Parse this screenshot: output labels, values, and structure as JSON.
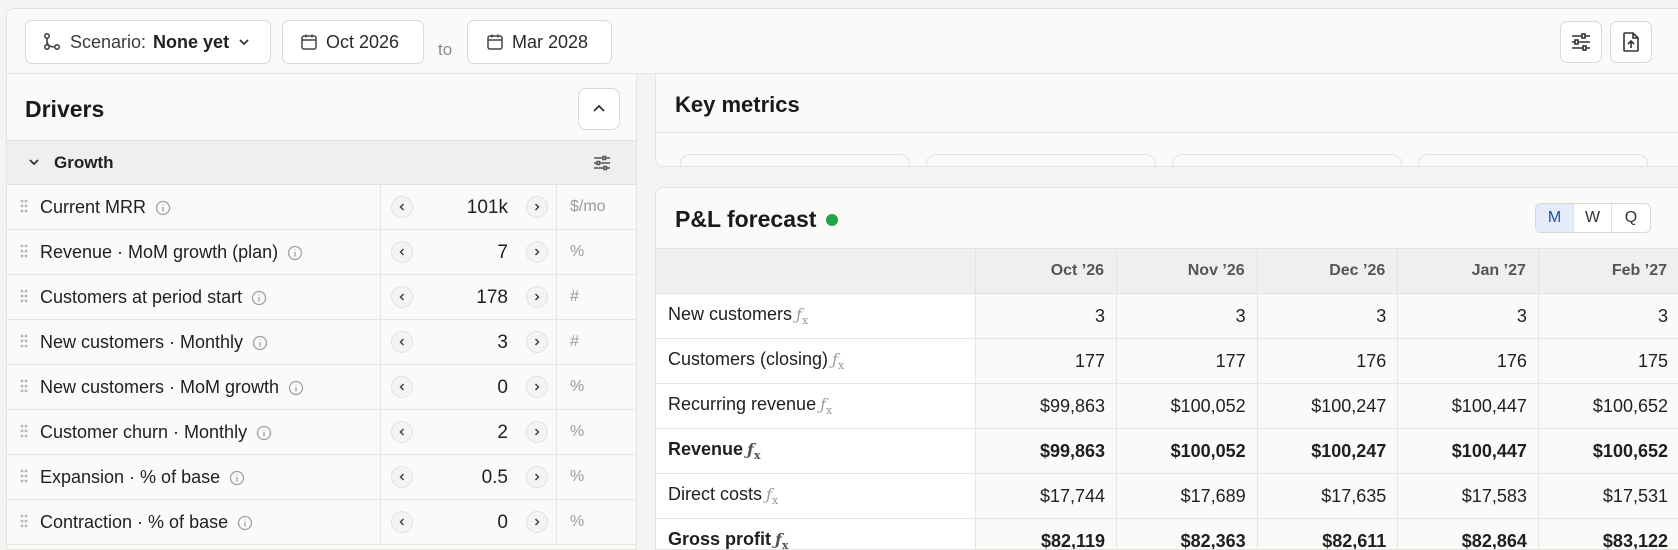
{
  "toolbar": {
    "scenario_label": "Scenario:",
    "scenario_value": "None yet",
    "start_date": "Oct 2026",
    "to_label": "to",
    "end_date": "Mar 2028"
  },
  "drivers": {
    "title": "Drivers",
    "group_title": "Growth",
    "rows": [
      {
        "label": "Current MRR",
        "value": "101k",
        "unit": "$/mo"
      },
      {
        "label": "Revenue · MoM growth (plan)",
        "value": "7",
        "unit": "%"
      },
      {
        "label": "Customers at period start",
        "value": "178",
        "unit": "#"
      },
      {
        "label": "New customers · Monthly",
        "value": "3",
        "unit": "#"
      },
      {
        "label": "New customers · MoM growth",
        "value": "0",
        "unit": "%"
      },
      {
        "label": "Customer churn · Monthly",
        "value": "2",
        "unit": "%"
      },
      {
        "label": "Expansion · % of base",
        "value": "0.5",
        "unit": "%"
      },
      {
        "label": "Contraction · % of base",
        "value": "0",
        "unit": "%"
      }
    ]
  },
  "key_metrics": {
    "title": "Key metrics"
  },
  "pl": {
    "title": "P&L forecast",
    "status_color": "#22a447",
    "period_toggle": [
      "M",
      "W",
      "Q"
    ],
    "active_period": "M",
    "columns": [
      "Oct ’26",
      "Nov ’26",
      "Dec ’26",
      "Jan ’27",
      "Feb ’27"
    ],
    "rows": [
      {
        "label": "New customers",
        "bold": false,
        "values": [
          "3",
          "3",
          "3",
          "3",
          "3"
        ]
      },
      {
        "label": "Customers (closing)",
        "bold": false,
        "values": [
          "177",
          "177",
          "176",
          "176",
          "175"
        ]
      },
      {
        "label": "Recurring revenue",
        "bold": false,
        "values": [
          "$99,863",
          "$100,052",
          "$100,247",
          "$100,447",
          "$100,652"
        ]
      },
      {
        "label": "Revenue",
        "bold": true,
        "values": [
          "$99,863",
          "$100,052",
          "$100,247",
          "$100,447",
          "$100,652"
        ]
      },
      {
        "label": "Direct costs",
        "bold": false,
        "values": [
          "$17,744",
          "$17,689",
          "$17,635",
          "$17,583",
          "$17,531"
        ]
      },
      {
        "label": "Gross profit",
        "bold": true,
        "values": [
          "$82,119",
          "$82,363",
          "$82,611",
          "$82,864",
          "$83,122"
        ]
      }
    ]
  },
  "icons": {
    "scenario": "branch-icon",
    "dropdown": "chevron-down-icon",
    "date": "calendar-icon",
    "settings": "sliders-icon",
    "export": "file-export-icon",
    "collapse": "chevron-up-icon",
    "drag": "drag-handle-icon",
    "info": "info-icon",
    "decrement": "chevron-left-icon",
    "increment": "chevron-right-icon",
    "formula": "fx-icon"
  }
}
